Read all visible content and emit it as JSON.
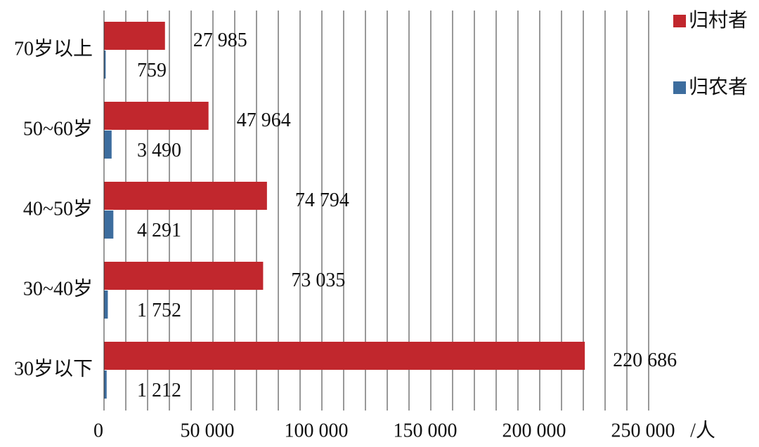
{
  "chart_data": {
    "type": "hbar",
    "categories": [
      "70岁以上",
      "50~60岁",
      "40~50岁",
      "30~40岁",
      "30岁以下"
    ],
    "series": [
      {
        "name": "归村者",
        "color": "#c1272d",
        "values": [
          27985,
          47964,
          74794,
          73035,
          220686
        ],
        "value_labels": [
          "27 985",
          "47 964",
          "74 794",
          "73 035",
          "220 686"
        ]
      },
      {
        "name": "归农者",
        "color": "#3d6d9e",
        "values": [
          759,
          3490,
          4291,
          1752,
          1212
        ],
        "value_labels": [
          "759",
          "3 490",
          "4 291",
          "1 752",
          "1 212"
        ]
      }
    ],
    "xlim": [
      0,
      250000
    ],
    "xticks": [
      0,
      {
        "value": 50000,
        "label": "50 000"
      },
      {
        "value": 100000,
        "label": "100 000"
      },
      {
        "value": 150000,
        "label": "150 000"
      },
      {
        "value": 200000,
        "label": "200 000"
      },
      {
        "value": 250000,
        "label": "250 000"
      }
    ],
    "xminorticks": [
      10000,
      20000,
      30000,
      40000,
      60000,
      70000,
      80000,
      90000,
      110000,
      120000,
      130000,
      140000,
      160000,
      170000,
      180000,
      190000,
      210000,
      220000,
      230000,
      240000
    ],
    "xlabel": "/人",
    "grid": true,
    "legend": "upper right"
  }
}
